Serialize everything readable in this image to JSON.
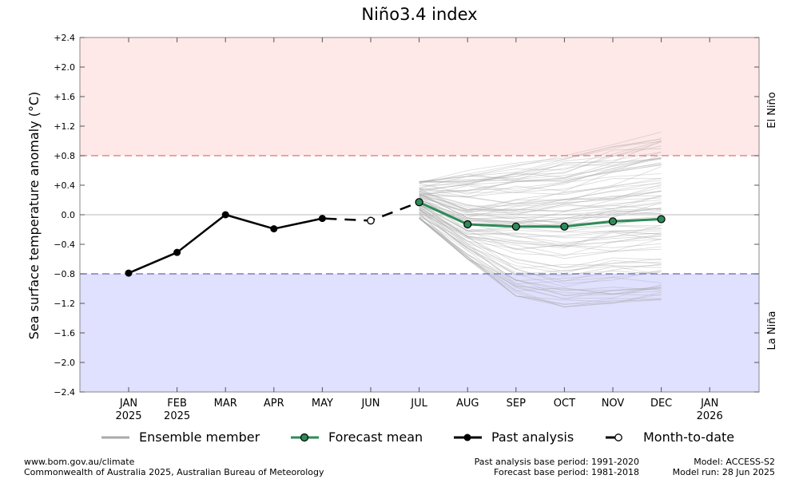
{
  "chart_data": {
    "type": "line",
    "title": "Niño3.4 index",
    "ylabel": "Sea surface temperature anomaly (°C)",
    "ylim": [
      -2.4,
      2.4
    ],
    "yticks": [
      2.4,
      2.0,
      1.6,
      1.2,
      0.8,
      0.4,
      0.0,
      -0.4,
      -0.8,
      -1.2,
      -1.6,
      -2.0,
      -2.4
    ],
    "ytick_labels": [
      "+2.4",
      "+2.0",
      "+1.6",
      "+1.2",
      "+0.8",
      "+0.4",
      "0.0",
      "−0.4",
      "−0.8",
      "−1.2",
      "−1.6",
      "−2.0",
      "−2.4"
    ],
    "x_categories": [
      [
        "JAN",
        "2025"
      ],
      [
        "FEB",
        "2025"
      ],
      [
        "MAR",
        ""
      ],
      [
        "APR",
        ""
      ],
      [
        "MAY",
        ""
      ],
      [
        "JUN",
        ""
      ],
      [
        "JUL",
        ""
      ],
      [
        "AUG",
        ""
      ],
      [
        "SEP",
        ""
      ],
      [
        "OCT",
        ""
      ],
      [
        "NOV",
        ""
      ],
      [
        "DEC",
        ""
      ],
      [
        "JAN",
        "2026"
      ]
    ],
    "thresholds": {
      "el_nino": 0.8,
      "la_nina": -0.8
    },
    "zone_labels": {
      "el_nino": "El Niño",
      "la_nina": "La Niña"
    },
    "zone_colors": {
      "el_nino_fill": "#ffe8e8",
      "el_nino_line": "#e07070",
      "la_nina_fill": "#e0e0ff",
      "la_nina_line": "#6868b0"
    },
    "series": [
      {
        "name": "Past analysis",
        "color": "#000000",
        "x_index": [
          0,
          1,
          2,
          3,
          4
        ],
        "values": [
          -0.79,
          -0.51,
          0.0,
          -0.19,
          -0.05
        ]
      },
      {
        "name": "Month-to-date",
        "color": "#000000",
        "x_index": [
          5
        ],
        "values": [
          -0.08
        ]
      },
      {
        "name": "Forecast mean",
        "color": "#2e8b57",
        "x_index": [
          6,
          7,
          8,
          9,
          10,
          11
        ],
        "values": [
          0.17,
          -0.13,
          -0.16,
          -0.16,
          -0.09,
          -0.06
        ]
      }
    ],
    "ensemble": {
      "name": "Ensemble member",
      "color": "#aaaaaa",
      "x_index": [
        6,
        7,
        8,
        9,
        10,
        11
      ],
      "upper_envelope": [
        0.45,
        0.6,
        0.7,
        0.8,
        0.95,
        1.12
      ],
      "lower_envelope": [
        -0.05,
        -0.6,
        -1.1,
        -1.25,
        -1.2,
        -1.15
      ],
      "member_count": 99
    },
    "legend": {
      "position": "bottom",
      "items": [
        "Ensemble member",
        "Forecast mean",
        "Past analysis",
        "Month-to-date"
      ]
    },
    "grid": false
  },
  "footer": {
    "left": [
      "www.bom.gov.au/climate",
      "Commonwealth of Australia 2025, Australian Bureau of Meteorology"
    ],
    "middle": [
      "Past analysis base period: 1991-2020",
      "Forecast base period: 1981-2018"
    ],
    "right": [
      "Model: ACCESS-S2",
      "Model run: 28 Jun 2025"
    ]
  }
}
